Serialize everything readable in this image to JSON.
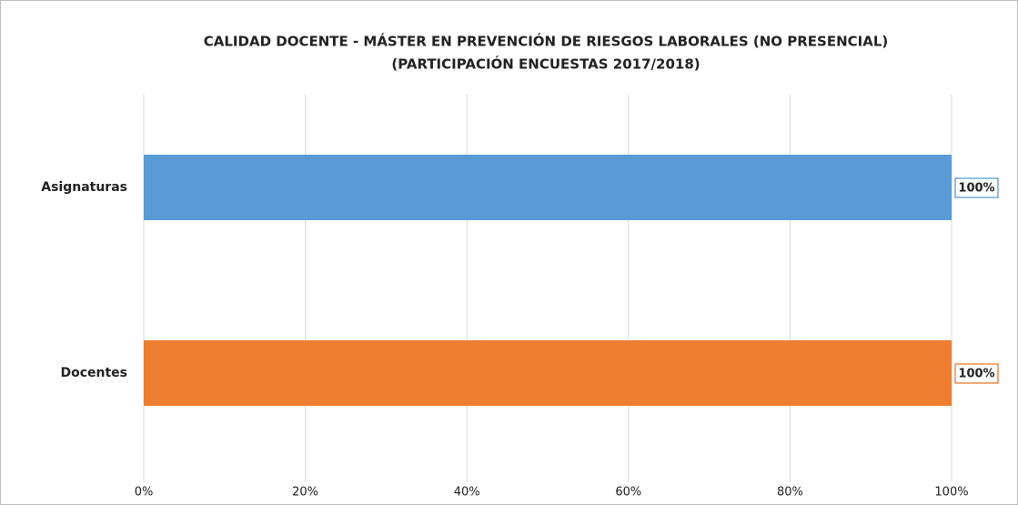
{
  "chart_data": {
    "type": "bar",
    "orientation": "horizontal",
    "title": "CALIDAD DOCENTE - MÁSTER EN PREVENCIÓN DE RIESGOS LABORALES (NO PRESENCIAL)",
    "subtitle": "(PARTICIPACIÓN ENCUESTAS 2017/2018)",
    "categories": [
      "Asignaturas",
      "Docentes"
    ],
    "values": [
      100,
      100
    ],
    "value_labels": [
      "100%",
      "100%"
    ],
    "colors": [
      "#5b9bd5",
      "#ed7d31"
    ],
    "xlim": [
      0,
      100
    ],
    "xticks": [
      {
        "value": 0,
        "label": "0%"
      },
      {
        "value": 20,
        "label": "20%"
      },
      {
        "value": 40,
        "label": "40%"
      },
      {
        "value": 60,
        "label": "60%"
      },
      {
        "value": 80,
        "label": "80%"
      },
      {
        "value": 100,
        "label": "100%"
      }
    ],
    "grid": true
  }
}
